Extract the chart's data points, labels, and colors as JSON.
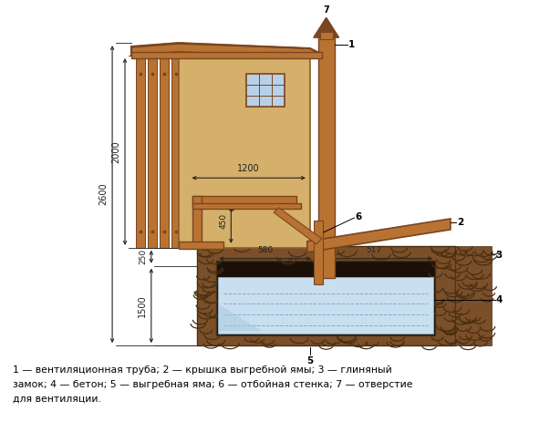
{
  "bg_color": "#ffffff",
  "caption_line1": "1 — вентиляционная труба; 2 — крышка выгребной ямы; 3 — глиняный",
  "caption_line2": "замок; 4 — бетон; 5 — выгребная яма; 6 — отбойная стенка; 7 — отверстие",
  "caption_line3": "для вентиляции.",
  "wall_fill": "#d4b06a",
  "wall_edge": "#8b5e2a",
  "wood_fill": "#b87333",
  "wood_edge": "#7a4520",
  "soil_fill": "#7a4f2a",
  "soil_dark": "#4a2f10",
  "water_fill": "#c8dff0",
  "concrete_fill": "#c8c0a0",
  "dim_color": "#222222",
  "label_color": "#111111"
}
